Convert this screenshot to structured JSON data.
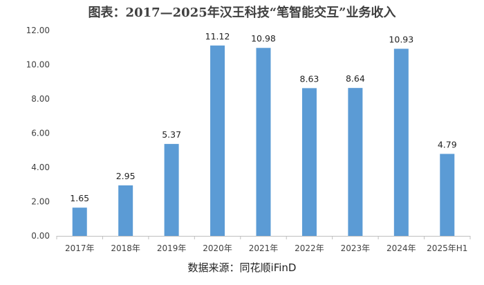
{
  "chart_data": {
    "type": "bar",
    "title": "图表：2017—2025年汉王科技“笔智能交互”业务收入",
    "source": "数据来源：同花顺iFinD",
    "categories": [
      "2017年",
      "2018年",
      "2019年",
      "2020年",
      "2021年",
      "2022年",
      "2023年",
      "2024年",
      "2025年H1"
    ],
    "values": [
      1.65,
      2.95,
      5.37,
      11.12,
      10.98,
      8.63,
      8.64,
      10.93,
      4.79
    ],
    "data_labels": [
      "1.65",
      "2.95",
      "5.37",
      "11.12",
      "10.98",
      "8.63",
      "8.64",
      "10.93",
      "4.79"
    ],
    "y_ticks": [
      "0.00",
      "2.00",
      "4.00",
      "6.00",
      "8.00",
      "10.00",
      "12.00"
    ],
    "ylim": [
      0,
      12
    ],
    "xlabel": "",
    "ylabel": "",
    "grid": false,
    "legend": "none",
    "bar_color": "#5b9bd5"
  }
}
